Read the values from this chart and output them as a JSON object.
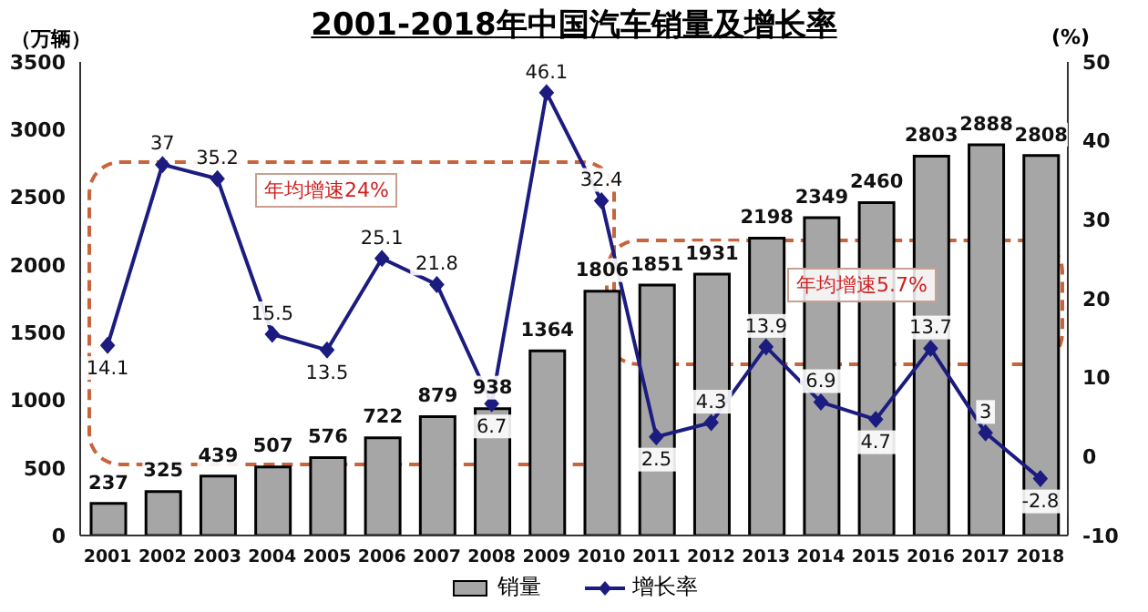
{
  "chart_data": {
    "type": "bar",
    "title": "2001-2018年中国汽车销量及增长率",
    "ylabel": "（万辆）",
    "y2label": "(%)",
    "categories": [
      "2001",
      "2002",
      "2003",
      "2004",
      "2005",
      "2006",
      "2007",
      "2008",
      "2009",
      "2010",
      "2011",
      "2012",
      "2013",
      "2014",
      "2015",
      "2016",
      "2017",
      "2018"
    ],
    "series": [
      {
        "name": "销量",
        "color": "#a6a6a6",
        "values": [
          237,
          325,
          439,
          507,
          576,
          722,
          879,
          938,
          1364,
          1806,
          1851,
          1931,
          2198,
          2349,
          2460,
          2803,
          2888,
          2808
        ]
      },
      {
        "name": "增长率",
        "type": "line",
        "axis": "y2",
        "color": "#1c1c80",
        "values": [
          14.1,
          37,
          35.2,
          15.5,
          13.5,
          25.1,
          21.8,
          6.7,
          46.1,
          32.4,
          2.5,
          4.3,
          13.9,
          6.9,
          4.7,
          13.7,
          3,
          -2.8
        ]
      }
    ],
    "ylim": [
      0,
      3500
    ],
    "yticks": [
      0,
      500,
      1000,
      1500,
      2000,
      2500,
      3000,
      3500
    ],
    "y2lim": [
      -10,
      50
    ],
    "y2ticks": [
      -10,
      0,
      10,
      20,
      30,
      40,
      50
    ],
    "data_labels": true,
    "marker": "diamond",
    "legend": "bottom",
    "grid": false,
    "annotations": [
      "年均增速24%",
      "年均增速5.7%"
    ]
  }
}
